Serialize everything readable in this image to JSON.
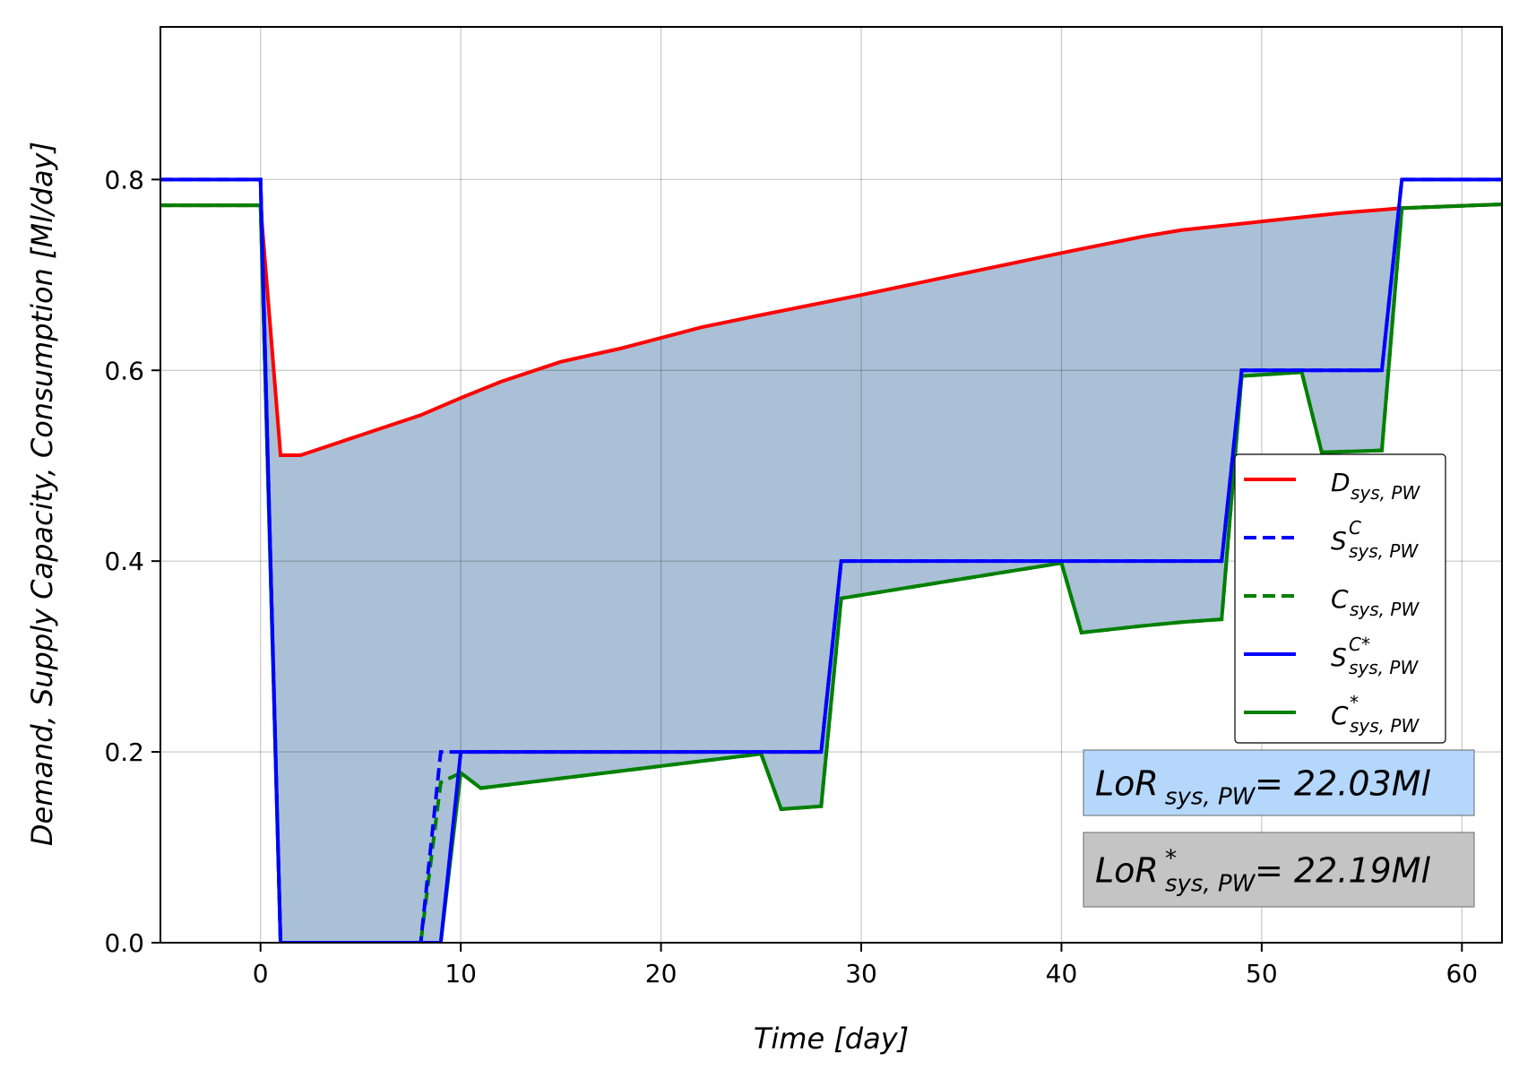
{
  "chart_data": {
    "type": "line",
    "xlabel": "Time [day]",
    "ylabel": "Demand,  Supply Capacity,  Consumption [Ml/day]",
    "xlim": [
      -5,
      62
    ],
    "ylim": [
      0,
      0.96
    ],
    "xticks": [
      0,
      10,
      20,
      30,
      40,
      50,
      60
    ],
    "yticks": [
      0.0,
      0.2,
      0.4,
      0.6,
      0.8
    ],
    "xtick_labels": [
      "0",
      "10",
      "20",
      "30",
      "40",
      "50",
      "60"
    ],
    "ytick_labels": [
      "0.0",
      "0.2",
      "0.4",
      "0.6",
      "0.8"
    ],
    "grid": true,
    "legend_position": "center-right",
    "fill_color": "#aac0d6",
    "series": [
      {
        "name": "D_sys,PW",
        "color": "#ff0000",
        "dash": "solid",
        "x": [
          -5,
          0,
          1,
          2,
          5,
          8,
          10,
          12,
          15,
          18,
          22,
          25,
          30,
          35,
          40,
          44,
          46,
          50,
          54,
          57,
          62
        ],
        "y": [
          0.773,
          0.773,
          0.511,
          0.511,
          0.532,
          0.553,
          0.571,
          0.588,
          0.609,
          0.623,
          0.645,
          0.658,
          0.679,
          0.701,
          0.723,
          0.74,
          0.747,
          0.756,
          0.765,
          0.77,
          0.774
        ]
      },
      {
        "name": "S^C_sys,PW",
        "color": "#0000ff",
        "dash": "dashed",
        "x": [
          -5,
          0,
          1,
          8,
          9,
          28,
          29,
          48,
          49,
          56,
          57,
          62
        ],
        "y": [
          0.8,
          0.8,
          0.0,
          0.0,
          0.2,
          0.2,
          0.4,
          0.4,
          0.6,
          0.6,
          0.8,
          0.8
        ]
      },
      {
        "name": "C_sys,PW",
        "color": "#008000",
        "dash": "dashed",
        "x": [
          -5,
          0,
          1,
          8,
          9,
          10,
          11,
          25,
          26,
          28,
          29,
          40,
          41,
          44,
          46,
          48,
          49,
          52,
          53,
          56,
          57,
          62
        ],
        "y": [
          0.773,
          0.773,
          0.0,
          0.0,
          0.168,
          0.178,
          0.162,
          0.198,
          0.14,
          0.143,
          0.361,
          0.398,
          0.325,
          0.332,
          0.336,
          0.339,
          0.594,
          0.598,
          0.514,
          0.516,
          0.77,
          0.774
        ]
      },
      {
        "name": "S^C*_sys,PW",
        "color": "#0000ff",
        "dash": "solid",
        "x": [
          -5,
          0,
          1,
          9,
          10,
          28,
          29,
          48,
          49,
          56,
          57,
          62
        ],
        "y": [
          0.8,
          0.8,
          0.0,
          0.0,
          0.2,
          0.2,
          0.4,
          0.4,
          0.6,
          0.6,
          0.8,
          0.8
        ]
      },
      {
        "name": "C*_sys,PW",
        "color": "#008000",
        "dash": "solid",
        "x": [
          -5,
          0,
          1,
          9,
          10,
          11,
          25,
          26,
          28,
          29,
          40,
          41,
          44,
          46,
          48,
          49,
          52,
          53,
          56,
          57,
          62
        ],
        "y": [
          0.773,
          0.773,
          0.0,
          0.0,
          0.178,
          0.162,
          0.198,
          0.14,
          0.143,
          0.361,
          0.398,
          0.325,
          0.332,
          0.336,
          0.339,
          0.594,
          0.598,
          0.514,
          0.516,
          0.77,
          0.774
        ]
      }
    ],
    "legend": [
      {
        "main": "D",
        "sub": "sys, PW",
        "sup": "",
        "color": "#ff0000",
        "dash": "solid"
      },
      {
        "main": "S",
        "sub": "sys, PW",
        "sup": "C",
        "color": "#0000ff",
        "dash": "dashed"
      },
      {
        "main": "C",
        "sub": "sys, PW",
        "sup": "",
        "color": "#008000",
        "dash": "dashed"
      },
      {
        "main": "S",
        "sub": "sys, PW",
        "sup": "C*",
        "color": "#0000ff",
        "dash": "solid"
      },
      {
        "main": "C",
        "sub": "sys, PW",
        "sup": "*",
        "color": "#008000",
        "dash": "solid"
      }
    ],
    "annotations": [
      {
        "main": "LoR",
        "sup": "",
        "sub": "sys, PW",
        "value": " = 22.03Ml",
        "bg": "#b4d7fb"
      },
      {
        "main": "LoR",
        "sup": "*",
        "sub": "sys, PW",
        "value": " = 22.19Ml",
        "bg": "#c4c4c4"
      }
    ]
  }
}
